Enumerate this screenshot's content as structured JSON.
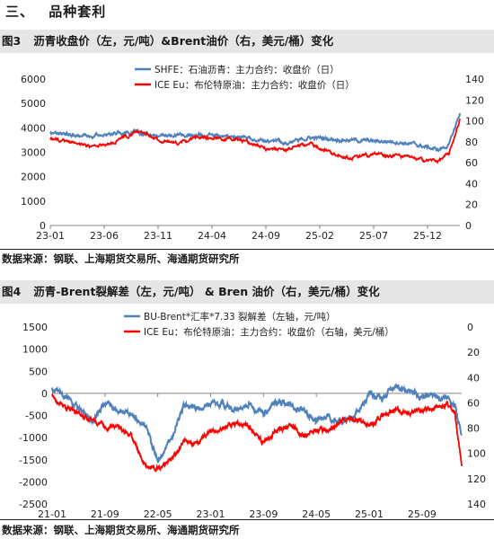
{
  "section": {
    "number": "三、",
    "title": "品种套利"
  },
  "figures": [
    {
      "label": "图3",
      "title": "沥青收盘价（左，元/吨）&Brent油价（右，美元/桶）变化",
      "source": "数据来源：钢联、上海期货交易所、海通期货研究所"
    },
    {
      "label": "图4",
      "title": "沥青-Brent裂解差（左，元/吨） & Bren 油价（右，美元/桶）变化",
      "source": "数据来源：钢联、上海期货交易所、海通期货研究所"
    }
  ],
  "chart_data": [
    {
      "type": "line",
      "x_ticks": [
        "23-01",
        "23-06",
        "23-11",
        "24-04",
        "24-09",
        "25-02",
        "25-07",
        "25-12"
      ],
      "x_range": [
        "2023-01",
        "2026-03"
      ],
      "left_axis": {
        "ticks": [
          0,
          1000,
          2000,
          3000,
          4000,
          5000,
          6000
        ],
        "ylim": [
          0,
          6000
        ]
      },
      "right_axis": {
        "ticks": [
          0,
          20,
          40,
          60,
          80,
          100,
          120,
          140
        ],
        "ylim": [
          0,
          140
        ]
      },
      "legend_position": "top-left",
      "grid": false,
      "series": [
        {
          "name": "SHFE：石油沥青：主力合约：收盘价（日）",
          "axis": "left",
          "color": "#4f81bd",
          "x": [
            "2023-01",
            "2023-03",
            "2023-05",
            "2023-07",
            "2023-09",
            "2023-11",
            "2024-01",
            "2024-03",
            "2024-05",
            "2024-07",
            "2024-09",
            "2024-11",
            "2025-01",
            "2025-03",
            "2025-05",
            "2025-07",
            "2025-09",
            "2025-11",
            "2026-01",
            "2026-02",
            "2026-03"
          ],
          "values": [
            3800,
            3750,
            3650,
            3800,
            3850,
            3650,
            3700,
            3700,
            3650,
            3600,
            3450,
            3400,
            3600,
            3550,
            3500,
            3450,
            3450,
            3300,
            3100,
            3300,
            4600
          ]
        },
        {
          "name": "ICE Eu：布伦特原油：主力合约：收盘价（日）",
          "axis": "right",
          "color": "#ff0000",
          "x": [
            "2023-01",
            "2023-03",
            "2023-05",
            "2023-07",
            "2023-09",
            "2023-11",
            "2024-01",
            "2024-03",
            "2024-05",
            "2024-07",
            "2024-09",
            "2024-11",
            "2025-01",
            "2025-03",
            "2025-05",
            "2025-07",
            "2025-09",
            "2025-11",
            "2026-01",
            "2026-02",
            "2026-03"
          ],
          "values": [
            83,
            80,
            75,
            80,
            90,
            82,
            78,
            85,
            83,
            82,
            73,
            73,
            78,
            70,
            64,
            68,
            67,
            63,
            62,
            68,
            102
          ]
        }
      ]
    },
    {
      "type": "line",
      "x_ticks": [
        "21-01",
        "21-09",
        "22-05",
        "23-01",
        "23-09",
        "24-05",
        "25-01",
        "25-09"
      ],
      "x_range": [
        "2021-01",
        "2026-03"
      ],
      "left_axis": {
        "ticks": [
          1500,
          1000,
          500,
          0,
          -500,
          -1000,
          -1500,
          -2000,
          -2500
        ],
        "ylim": [
          -2500,
          1500
        ]
      },
      "right_axis": {
        "ticks": [
          0,
          20,
          40,
          60,
          80,
          100,
          120,
          140
        ],
        "ylim": [
          140,
          0
        ],
        "inverted": true
      },
      "legend_position": "top-center",
      "grid": false,
      "series": [
        {
          "name": "BU-Brent*汇率*7.33 裂解差（左轴，元/吨）",
          "axis": "left",
          "color": "#4f81bd",
          "x": [
            "2021-01",
            "2021-03",
            "2021-05",
            "2021-07",
            "2021-09",
            "2021-11",
            "2022-01",
            "2022-03",
            "2022-05",
            "2022-07",
            "2022-09",
            "2022-11",
            "2023-01",
            "2023-03",
            "2023-05",
            "2023-07",
            "2023-09",
            "2023-11",
            "2024-01",
            "2024-03",
            "2024-05",
            "2024-07",
            "2024-09",
            "2024-11",
            "2025-01",
            "2025-03",
            "2025-05",
            "2025-07",
            "2025-09",
            "2025-11",
            "2026-01",
            "2026-02",
            "2026-03"
          ],
          "values": [
            150,
            -100,
            -350,
            -650,
            -200,
            -400,
            -500,
            -700,
            -1550,
            -1050,
            -250,
            -350,
            -200,
            -250,
            -400,
            -250,
            -500,
            -200,
            -250,
            -400,
            -650,
            -500,
            -650,
            -450,
            -50,
            -100,
            150,
            50,
            -100,
            -50,
            -100,
            -250,
            -950
          ]
        },
        {
          "name": "ICE Eu：布伦特原油：主力合约：收盘价（右轴，美元/桶）",
          "axis": "right",
          "color": "#ff0000",
          "x": [
            "2021-01",
            "2021-03",
            "2021-05",
            "2021-07",
            "2021-09",
            "2021-11",
            "2022-01",
            "2022-03",
            "2022-05",
            "2022-07",
            "2022-09",
            "2022-11",
            "2023-01",
            "2023-03",
            "2023-05",
            "2023-07",
            "2023-09",
            "2023-11",
            "2024-01",
            "2024-03",
            "2024-05",
            "2024-07",
            "2024-09",
            "2024-11",
            "2025-01",
            "2025-03",
            "2025-05",
            "2025-07",
            "2025-09",
            "2025-11",
            "2026-01",
            "2026-02",
            "2026-03"
          ],
          "values": [
            55,
            64,
            68,
            74,
            78,
            80,
            86,
            110,
            112,
            105,
            90,
            92,
            83,
            80,
            75,
            80,
            92,
            82,
            78,
            85,
            82,
            82,
            73,
            73,
            78,
            70,
            64,
            68,
            67,
            63,
            62,
            68,
            110
          ]
        }
      ]
    }
  ]
}
